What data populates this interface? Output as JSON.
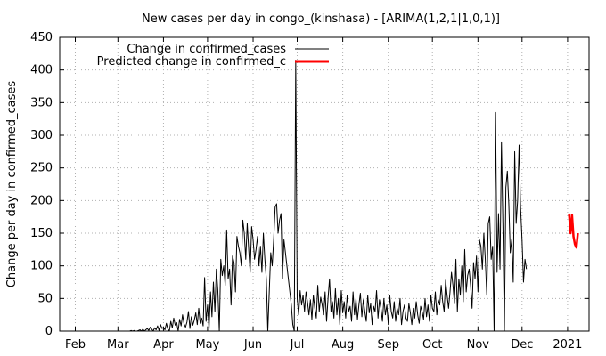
{
  "chart_data": {
    "type": "line",
    "title": "New cases per day in congo_(kinshasa) -  [ARIMA(1,2,1|1,0,1)]",
    "xlabel": "",
    "ylabel": "Change per day in confirmed_cases",
    "x_range": [
      "2021-01-14",
      "2021-01-15"
    ],
    "ylim": [
      0,
      450
    ],
    "yticks": [
      0,
      50,
      100,
      150,
      200,
      250,
      300,
      350,
      400,
      450
    ],
    "yticklabels": [
      "0",
      "50",
      "100",
      "150",
      "200",
      "250",
      "300",
      "350",
      "400",
      "450"
    ],
    "xticks": [
      {
        "label": "Feb",
        "date": "2020-02-01"
      },
      {
        "label": "Mar",
        "date": "2020-03-01"
      },
      {
        "label": "Apr",
        "date": "2020-04-01"
      },
      {
        "label": "May",
        "date": "2020-05-01"
      },
      {
        "label": "Jun",
        "date": "2020-06-01"
      },
      {
        "label": "Jul",
        "date": "2020-07-01"
      },
      {
        "label": "Aug",
        "date": "2020-08-01"
      },
      {
        "label": "Sep",
        "date": "2020-09-01"
      },
      {
        "label": "Oct",
        "date": "2020-10-01"
      },
      {
        "label": "Nov",
        "date": "2020-11-01"
      },
      {
        "label": "Dec",
        "date": "2020-12-01"
      },
      {
        "label": "2021",
        "date": "2021-01-01"
      }
    ],
    "grid": true,
    "legend_position": "top-left",
    "series": [
      {
        "name": "Change in confirmed_cases",
        "color": "#000000",
        "start_date": "2020-01-22",
        "values": [
          0,
          0,
          0,
          0,
          0,
          0,
          0,
          0,
          0,
          0,
          0,
          0,
          0,
          0,
          0,
          0,
          0,
          0,
          0,
          0,
          0,
          0,
          0,
          0,
          0,
          0,
          0,
          0,
          0,
          0,
          0,
          0,
          0,
          0,
          0,
          0,
          0,
          0,
          0,
          0,
          0,
          0,
          0,
          0,
          0,
          0,
          0,
          0,
          1,
          0,
          1,
          0,
          0,
          1,
          2,
          0,
          3,
          0,
          2,
          4,
          1,
          6,
          3,
          0,
          5,
          2,
          8,
          1,
          10,
          4,
          6,
          2,
          12,
          3,
          0,
          15,
          5,
          20,
          9,
          13,
          0,
          18,
          8,
          25,
          11,
          6,
          14,
          30,
          4,
          22,
          9,
          17,
          28,
          10,
          35,
          12,
          20,
          8,
          82,
          15,
          40,
          3,
          60,
          22,
          75,
          30,
          95,
          62,
          0,
          110,
          85,
          100,
          70,
          155,
          80,
          95,
          40,
          115,
          105,
          60,
          145,
          130,
          120,
          100,
          170,
          150,
          110,
          165,
          125,
          90,
          160,
          140,
          110,
          125,
          145,
          100,
          130,
          90,
          150,
          110,
          80,
          0,
          60,
          120,
          100,
          140,
          190,
          195,
          150,
          170,
          180,
          80,
          140,
          120,
          100,
          80,
          60,
          40,
          10,
          0,
          415,
          50,
          25,
          62,
          40,
          55,
          30,
          60,
          45,
          25,
          48,
          18,
          55,
          35,
          20,
          70,
          30,
          52,
          40,
          25,
          60,
          15,
          50,
          80,
          30,
          45,
          20,
          65,
          25,
          50,
          10,
          62,
          28,
          45,
          20,
          55,
          30,
          38,
          15,
          60,
          25,
          50,
          18,
          40,
          58,
          22,
          48,
          30,
          15,
          55,
          28,
          42,
          10,
          38,
          30,
          62,
          20,
          48,
          35,
          15,
          50,
          25,
          40,
          10,
          55,
          30,
          20,
          45,
          15,
          35,
          25,
          50,
          10,
          30,
          40,
          20,
          15,
          42,
          28,
          10,
          35,
          20,
          45,
          25,
          12,
          38,
          30,
          18,
          50,
          22,
          40,
          15,
          55,
          35,
          30,
          60,
          25,
          48,
          40,
          70,
          45,
          30,
          78,
          55,
          35,
          60,
          90,
          70,
          42,
          110,
          30,
          80,
          55,
          100,
          45,
          125,
          60,
          85,
          95,
          70,
          35,
          105,
          80,
          115,
          60,
          140,
          130,
          95,
          150,
          110,
          55,
          165,
          175,
          110,
          130,
          0,
          335,
          90,
          180,
          95,
          290,
          160,
          0,
          220,
          245,
          195,
          120,
          140,
          75,
          275,
          165,
          200,
          285,
          190,
          140,
          75,
          110,
          95
        ]
      },
      {
        "name": "Predicted change in confirmed_c",
        "color": "#ff0000",
        "start_date": "2021-01-02",
        "values": [
          180,
          150,
          178,
          145,
          133,
          128,
          150
        ]
      }
    ]
  }
}
